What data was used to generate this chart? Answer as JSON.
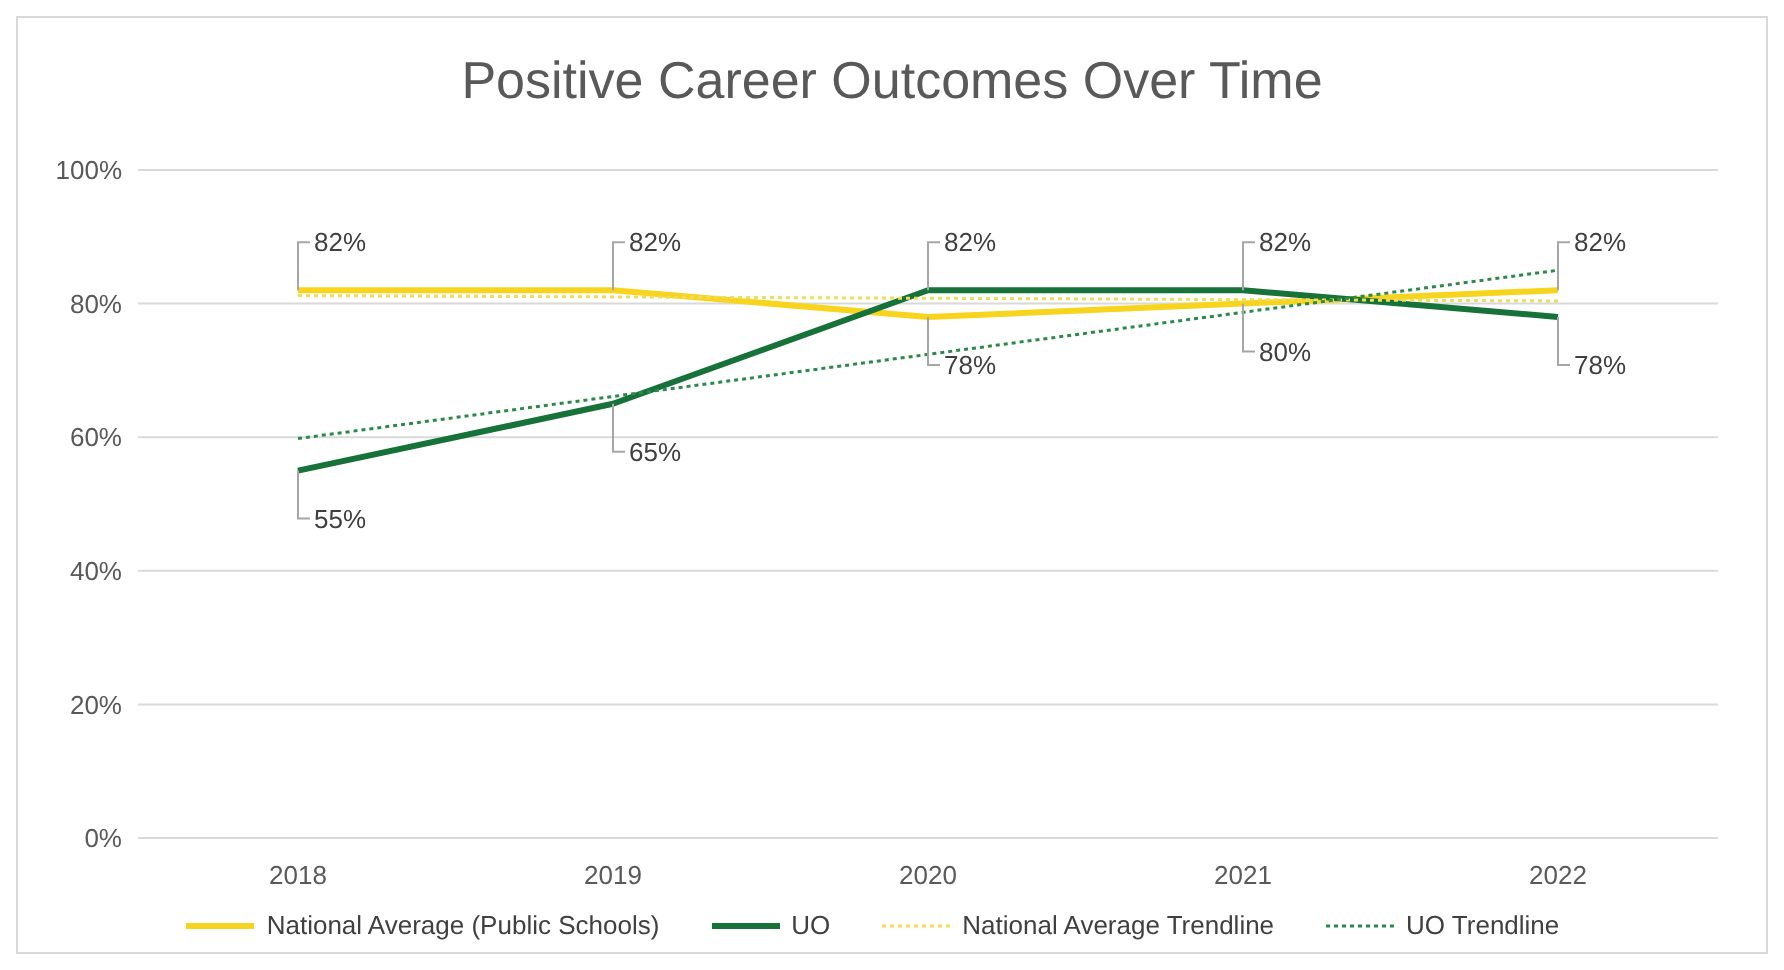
{
  "chart_data": {
    "type": "line",
    "title": "Positive Career Outcomes Over Time",
    "categories": [
      "2018",
      "2019",
      "2020",
      "2021",
      "2022"
    ],
    "series": [
      {
        "name": "National Average (Public Schools)",
        "color": "#f7d51e",
        "values": [
          82,
          82,
          78,
          80,
          82
        ],
        "value_labels": [
          "82%",
          "82%",
          "78%",
          "80%",
          "82%"
        ]
      },
      {
        "name": "UO",
        "color": "#17723a",
        "values": [
          55,
          65,
          82,
          82,
          78
        ],
        "value_labels": [
          "55%",
          "65%",
          "82%",
          "82%",
          "78%"
        ]
      },
      {
        "name": "National Average Trendline",
        "color": "#f2da5a",
        "values": [
          81.2,
          81.0,
          80.8,
          80.6,
          80.4
        ],
        "line_style": "dotted"
      },
      {
        "name": "UO Trendline",
        "color": "#2a8a4a",
        "values": [
          59.8,
          66.1,
          72.4,
          78.7,
          85.0
        ],
        "line_style": "dotted"
      }
    ],
    "ylim": [
      0,
      100
    ],
    "yticks": [
      {
        "value": 0,
        "label": "0%"
      },
      {
        "value": 20,
        "label": "20%"
      },
      {
        "value": 40,
        "label": "40%"
      },
      {
        "value": 60,
        "label": "60%"
      },
      {
        "value": 80,
        "label": "80%"
      },
      {
        "value": 100,
        "label": "100%"
      }
    ],
    "grid": "y",
    "legend": "bottom",
    "marker": "none"
  }
}
